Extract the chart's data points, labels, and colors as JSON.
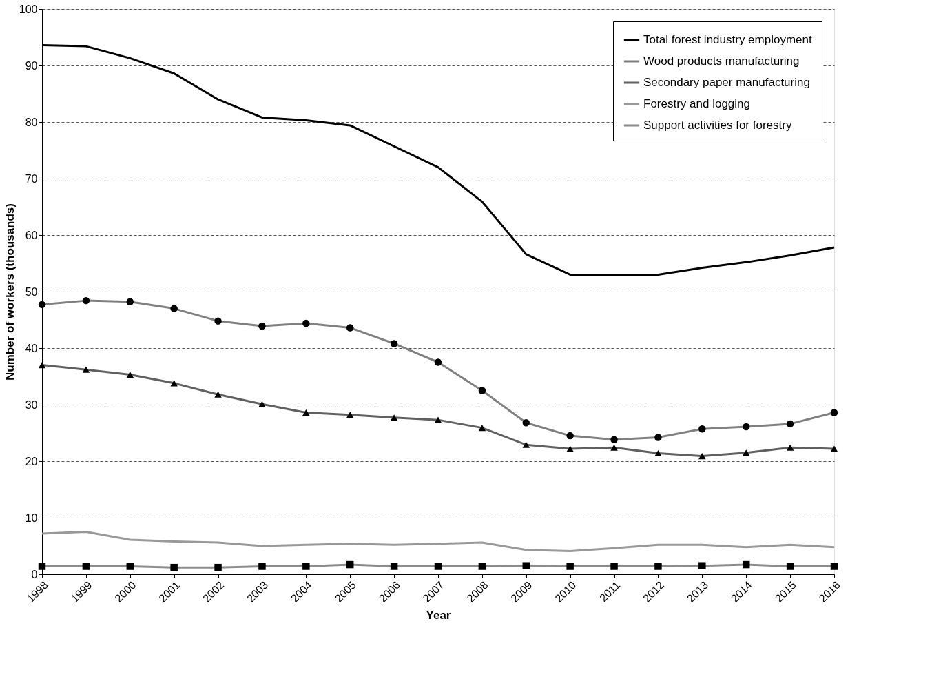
{
  "chart_data": {
    "type": "line",
    "xlabel": "Year",
    "ylabel": "Number of workers (thousands)",
    "categories": [
      "1998",
      "1999",
      "2000",
      "2001",
      "2002",
      "2003",
      "2004",
      "2005",
      "2006",
      "2007",
      "2008",
      "2009",
      "2010",
      "2011",
      "2012",
      "2013",
      "2014",
      "2015",
      "2016"
    ],
    "ylim": [
      0,
      100
    ],
    "yticks": [
      0,
      10,
      20,
      30,
      40,
      50,
      60,
      70,
      80,
      90,
      100
    ],
    "grid": "y",
    "legend": "top right",
    "line_style": "solid",
    "series": [
      {
        "name": "Total forest industry employment",
        "color": "#000000",
        "marker": "none",
        "values": [
          93.6,
          93.4,
          91.3,
          88.6,
          84.0,
          80.8,
          80.3,
          79.4,
          75.7,
          72.0,
          65.9,
          56.6,
          53.0,
          53.0,
          53.0,
          54.2,
          55.2,
          56.4,
          57.8
        ]
      },
      {
        "name": "Wood products manufacturing",
        "color": "#808080",
        "marker": "circle",
        "values": [
          47.7,
          48.4,
          48.2,
          47.0,
          44.8,
          43.9,
          44.4,
          43.6,
          40.8,
          37.5,
          32.5,
          26.8,
          24.5,
          23.8,
          24.2,
          25.7,
          26.1,
          26.6,
          28.6
        ]
      },
      {
        "name": "Secondary paper manufacturing",
        "color": "#606060",
        "marker": "triangle",
        "values": [
          37.0,
          36.2,
          35.3,
          33.8,
          31.8,
          30.1,
          28.6,
          28.2,
          27.7,
          27.3,
          25.9,
          22.9,
          22.2,
          22.4,
          21.4,
          20.9,
          21.5,
          22.4,
          22.2
        ]
      },
      {
        "name": "Forestry and logging",
        "color": "#999999",
        "marker": "none",
        "values": [
          7.2,
          7.5,
          6.1,
          5.8,
          5.6,
          5.0,
          5.2,
          5.4,
          5.2,
          5.4,
          5.6,
          4.3,
          4.1,
          4.6,
          5.2,
          5.2,
          4.8,
          5.2,
          4.8
        ]
      },
      {
        "name": "Support activities for forestry",
        "color": "#8c8c8c",
        "marker": "square",
        "values": [
          1.4,
          1.4,
          1.4,
          1.2,
          1.2,
          1.4,
          1.4,
          1.7,
          1.4,
          1.4,
          1.4,
          1.5,
          1.4,
          1.4,
          1.4,
          1.5,
          1.7,
          1.4,
          1.4
        ]
      }
    ]
  }
}
